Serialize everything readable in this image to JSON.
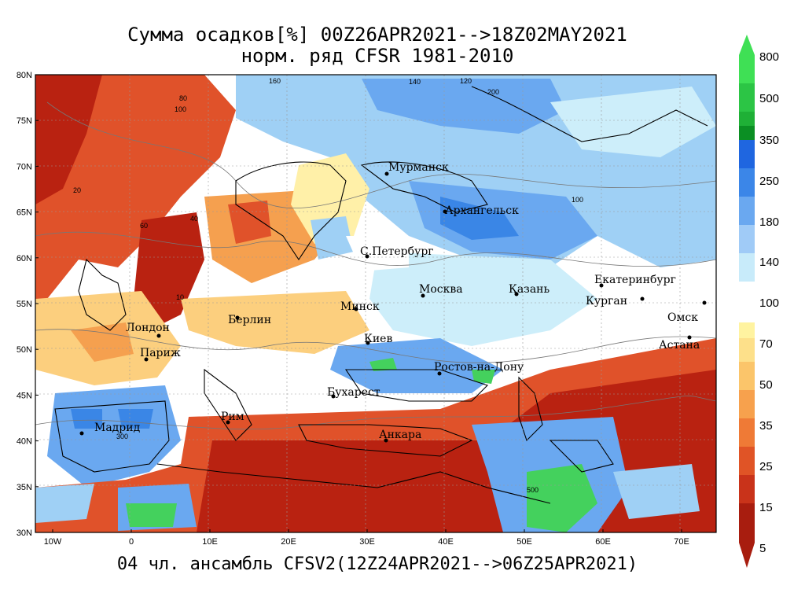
{
  "title": {
    "line1": "Сумма осадков[%] 00Z26APR2021-->18Z02MAY2021",
    "line2": "норм. ряд CFSR 1981-2010"
  },
  "footer": "04 чл. ансамбль CFSV2(12Z24APR2021-->06Z25APR2021)",
  "axes": {
    "lat_labels": [
      "80N",
      "75N",
      "70N",
      "65N",
      "60N",
      "55N",
      "50N",
      "45N",
      "40N",
      "35N",
      "30N"
    ],
    "lon_labels": [
      "10W",
      "0",
      "10E",
      "20E",
      "30E",
      "40E",
      "50E",
      "60E",
      "70E"
    ]
  },
  "cities": [
    "Мурманск",
    "Архангельск",
    "С.Петербург",
    "Москва",
    "Казань",
    "Екатеринбург",
    "Курган",
    "Омск",
    "Астана",
    "Минск",
    "Берлин",
    "Лондон",
    "Париж",
    "Киев",
    "Ростов-на-Дону",
    "Бухарест",
    "Рим",
    "Мадрид",
    "Анкара"
  ],
  "contour_labels": [
    "160",
    "140",
    "120",
    "100",
    "80",
    "60",
    "40",
    "20",
    "200",
    "300",
    "500",
    "100",
    "10"
  ],
  "colorbar": {
    "labels": [
      "800",
      "500",
      "350",
      "250",
      "180",
      "140",
      "100",
      "70",
      "50",
      "35",
      "25",
      "15",
      "5"
    ],
    "colors_upper": [
      "#3fe055",
      "#1fb036",
      "#0b8f23",
      "#1f66e0",
      "#3b86e8",
      "#6aa8f0",
      "#a0cbf7",
      "#c8ebfa"
    ],
    "colors_lower": [
      "#fff3a0",
      "#fde08a",
      "#fbc56a",
      "#f7a14d",
      "#ef7a36",
      "#e05426",
      "#c9331a",
      "#a81d0f"
    ]
  },
  "colors": {
    "deep_red": "#b92211",
    "red": "#e0522a",
    "orange": "#f5a04f",
    "light_orange": "#fccf7e",
    "yellow": "#fff0a8",
    "white": "#ffffff",
    "pale_blue": "#cdeefa",
    "light_blue": "#9fd0f5",
    "mid_blue": "#6aa8f0",
    "blue": "#3a86e6",
    "green": "#44d15d"
  }
}
